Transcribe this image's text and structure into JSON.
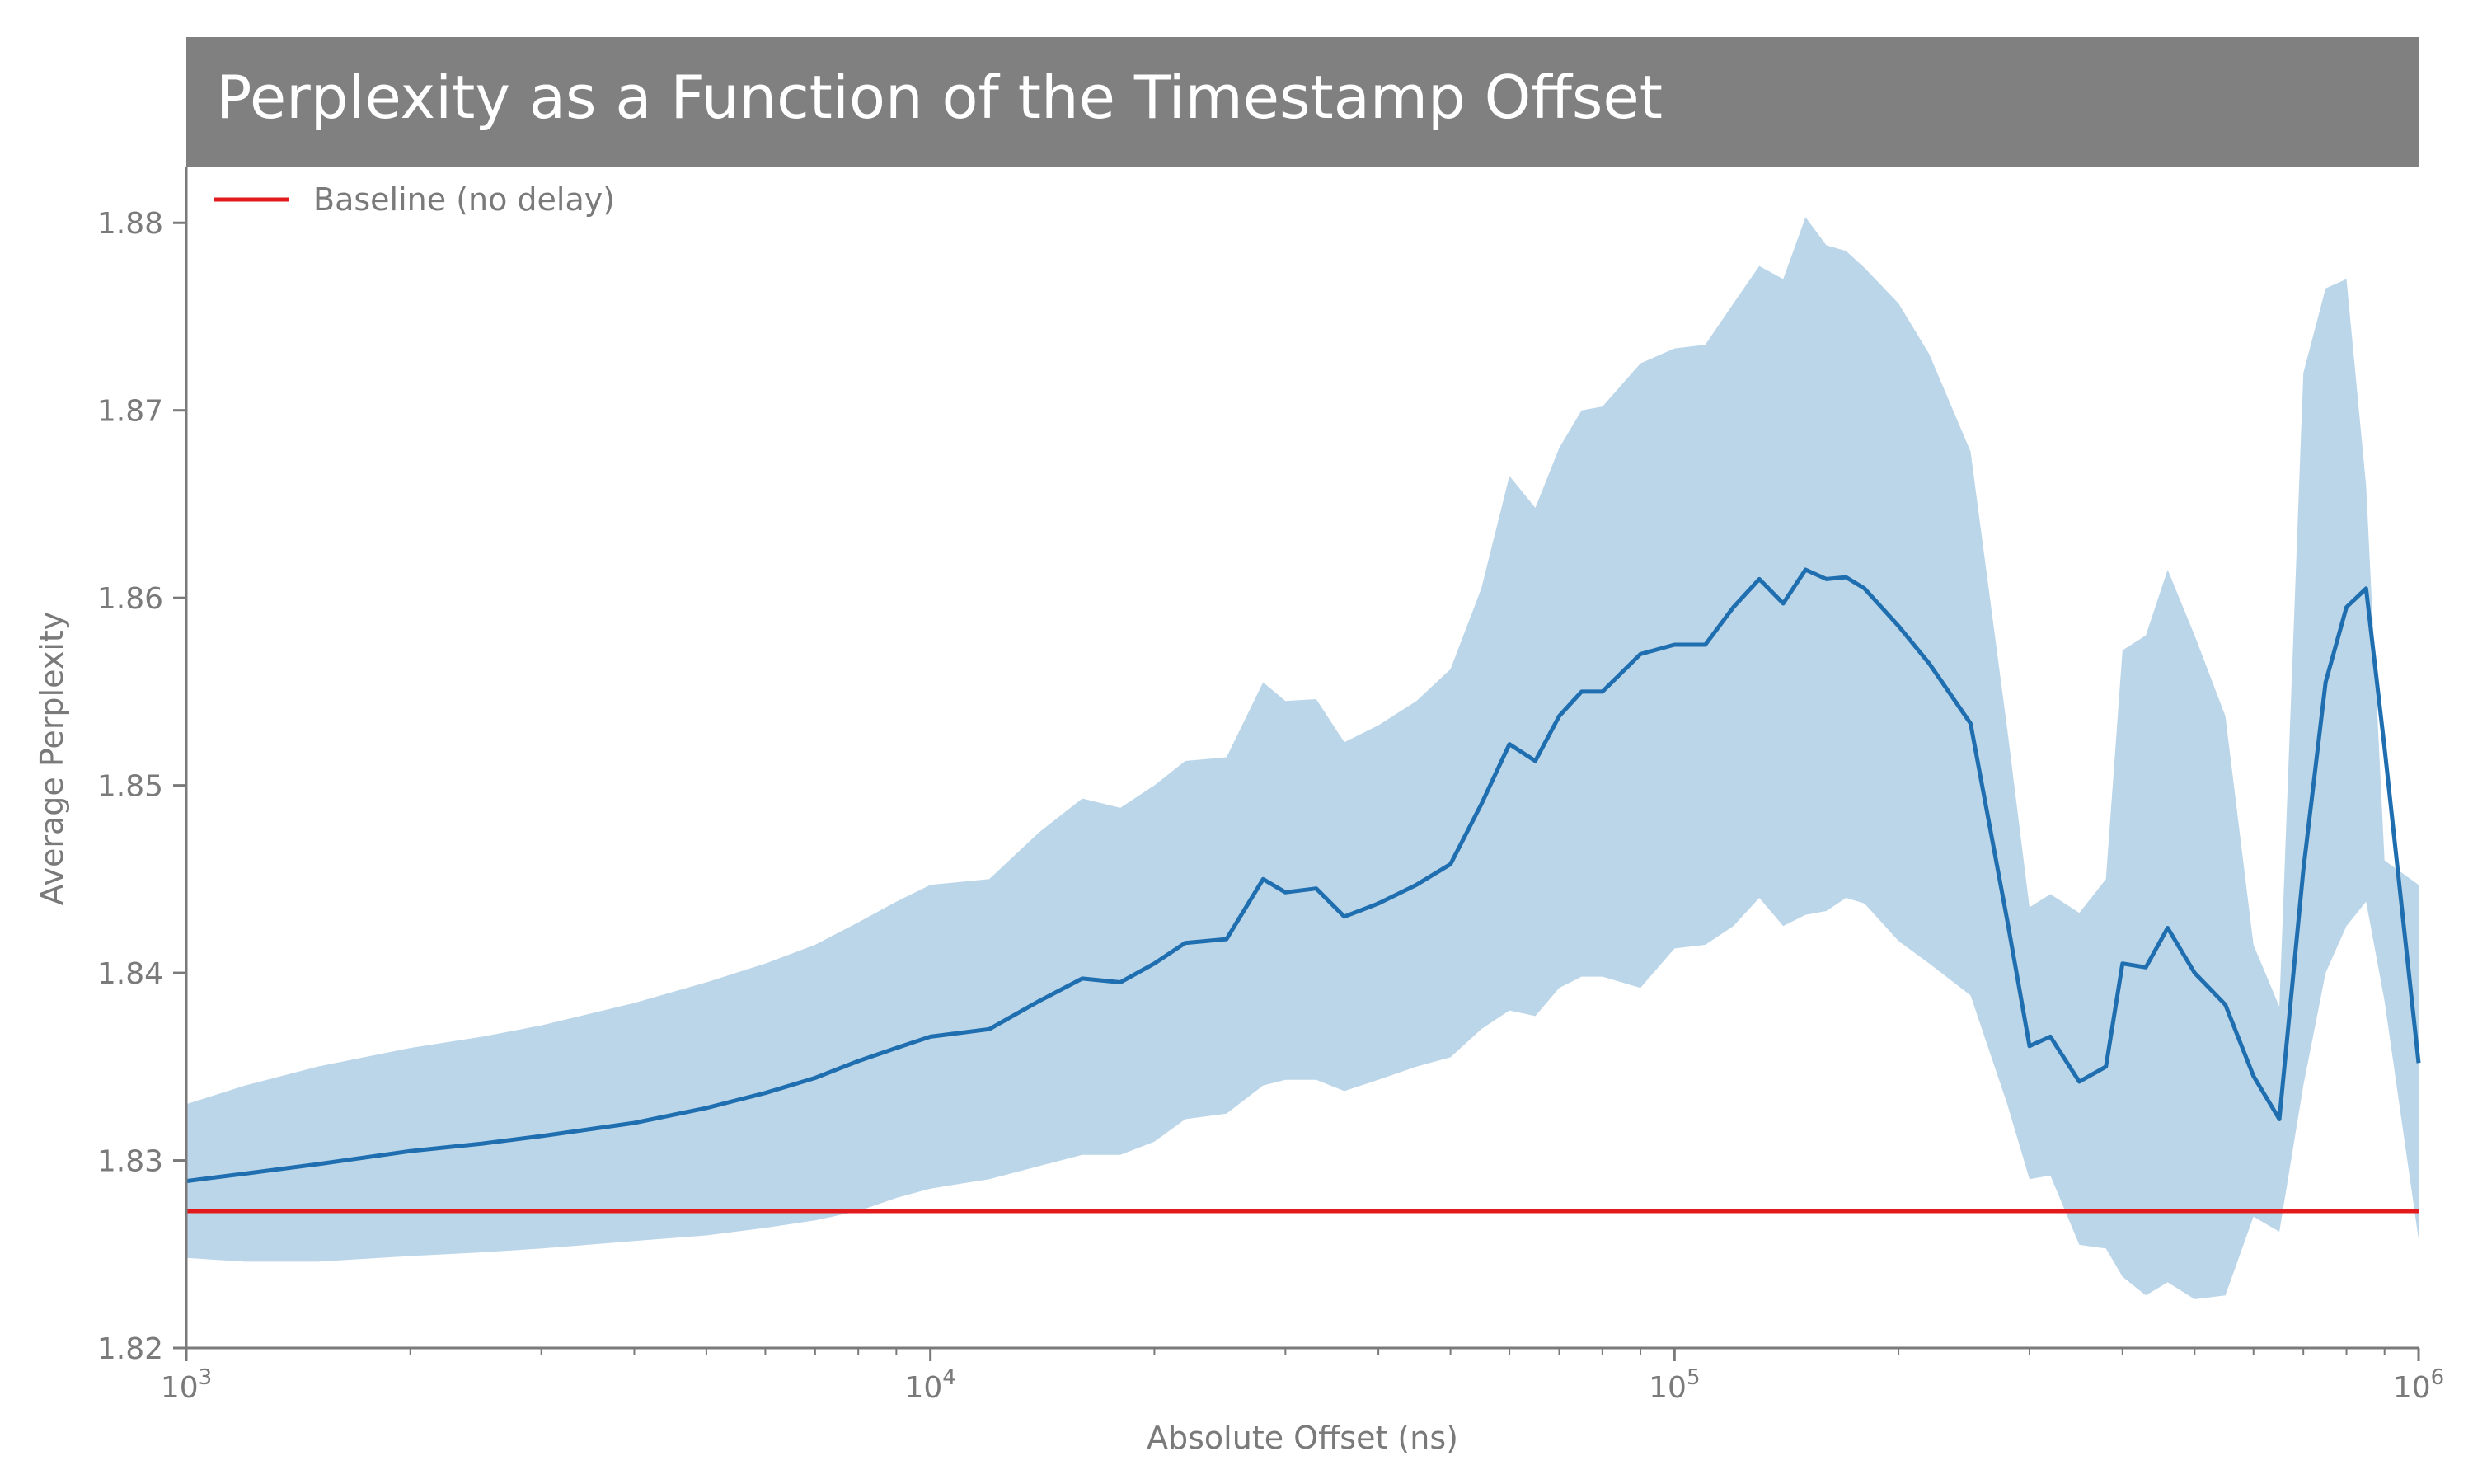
{
  "chart_data": {
    "type": "line",
    "title": "Perplexity as a Function of the Timestamp Offset",
    "xlabel": "Absolute Offset (ns)",
    "ylabel": "Average Perplexity",
    "xscale": "log",
    "xlim": [
      1000,
      1000000
    ],
    "ylim": [
      1.82,
      1.883
    ],
    "grid": false,
    "legend_position": "top-left",
    "x_ticks": [
      {
        "base": "10",
        "exp": "3",
        "value": 1000
      },
      {
        "base": "10",
        "exp": "4",
        "value": 10000
      },
      {
        "base": "10",
        "exp": "5",
        "value": 100000
      },
      {
        "base": "10",
        "exp": "6",
        "value": 1000000
      }
    ],
    "y_ticks": [
      "1.82",
      "1.83",
      "1.84",
      "1.85",
      "1.86",
      "1.87",
      "1.88"
    ],
    "colors": {
      "title_bar": "#808080",
      "mean_line": "#1f6fb0",
      "band": "#bcd6e9",
      "baseline": "#e31a1c",
      "axis": "#7a7a7a"
    },
    "baseline": {
      "name": "Baseline (no delay)",
      "value": 1.8273
    },
    "series": [
      {
        "x": [
          1000,
          1200,
          1500,
          2000,
          2500,
          3000,
          4000,
          5000,
          6000,
          7000,
          8000,
          9000,
          10000,
          12000,
          14000,
          16000,
          18000,
          20000,
          22000,
          25000,
          28000,
          30000,
          33000,
          36000,
          40000,
          45000,
          50000,
          55000,
          60000,
          65000,
          70000,
          75000,
          80000,
          90000,
          100000,
          110000,
          120000,
          130000,
          140000,
          150000,
          160000,
          170000,
          180000,
          200000,
          220000,
          250000,
          280000,
          300000,
          320000,
          350000,
          380000,
          400000,
          430000,
          460000,
          500000,
          550000,
          600000,
          650000,
          700000,
          750000,
          800000,
          850000,
          900000,
          1000000
        ],
        "mean": [
          1.8289,
          1.8293,
          1.8298,
          1.8305,
          1.8309,
          1.8313,
          1.832,
          1.8328,
          1.8336,
          1.8344,
          1.8353,
          1.836,
          1.8366,
          1.837,
          1.8385,
          1.8397,
          1.8395,
          1.8405,
          1.8416,
          1.8418,
          1.845,
          1.8443,
          1.8445,
          1.843,
          1.8437,
          1.8447,
          1.8458,
          1.849,
          1.8522,
          1.8513,
          1.8537,
          1.855,
          1.855,
          1.857,
          1.8575,
          1.8575,
          1.8595,
          1.861,
          1.8597,
          1.8615,
          1.861,
          1.8611,
          1.8605,
          1.8585,
          1.8565,
          1.8533,
          1.8428,
          1.8361,
          1.8366,
          1.8342,
          1.835,
          1.8405,
          1.8403,
          1.8424,
          1.84,
          1.8383,
          1.8345,
          1.8322,
          1.8455,
          1.8555,
          1.8595,
          1.8605,
          1.852,
          1.8352
        ]
      },
      {
        "x": [
          1000,
          1200,
          1500,
          2000,
          2500,
          3000,
          4000,
          5000,
          6000,
          7000,
          8000,
          9000,
          10000,
          12000,
          14000,
          16000,
          18000,
          20000,
          22000,
          25000,
          28000,
          30000,
          33000,
          36000,
          40000,
          45000,
          50000,
          55000,
          60000,
          65000,
          70000,
          75000,
          80000,
          90000,
          100000,
          110000,
          120000,
          130000,
          140000,
          150000,
          160000,
          170000,
          180000,
          200000,
          220000,
          250000,
          280000,
          300000,
          320000,
          350000,
          380000,
          400000,
          430000,
          460000,
          500000,
          550000,
          600000,
          650000,
          700000,
          750000,
          800000,
          850000,
          900000,
          1000000
        ],
        "upper": [
          1.833,
          1.834,
          1.835,
          1.836,
          1.8366,
          1.8372,
          1.8384,
          1.8395,
          1.8405,
          1.8415,
          1.8427,
          1.8438,
          1.8447,
          1.845,
          1.8475,
          1.8493,
          1.8488,
          1.85,
          1.8513,
          1.8515,
          1.8555,
          1.8545,
          1.8546,
          1.8523,
          1.8532,
          1.8545,
          1.8562,
          1.8605,
          1.8665,
          1.8648,
          1.868,
          1.87,
          1.8702,
          1.8725,
          1.8733,
          1.8735,
          1.8757,
          1.8777,
          1.877,
          1.8803,
          1.8788,
          1.8785,
          1.8776,
          1.8757,
          1.873,
          1.8678,
          1.853,
          1.8435,
          1.8442,
          1.8432,
          1.845,
          1.8572,
          1.858,
          1.8615,
          1.858,
          1.8537,
          1.8415,
          1.8382,
          1.872,
          1.8765,
          1.877,
          1.866,
          1.846,
          1.8447
        ],
        "lower": [
          1.8248,
          1.8246,
          1.8246,
          1.8249,
          1.8251,
          1.8253,
          1.8257,
          1.826,
          1.8264,
          1.8268,
          1.8273,
          1.828,
          1.8285,
          1.829,
          1.8297,
          1.8303,
          1.8303,
          1.831,
          1.8322,
          1.8325,
          1.834,
          1.8343,
          1.8343,
          1.8337,
          1.8343,
          1.835,
          1.8355,
          1.837,
          1.838,
          1.8377,
          1.8392,
          1.8398,
          1.8398,
          1.8392,
          1.8413,
          1.8415,
          1.8425,
          1.844,
          1.8425,
          1.8431,
          1.8433,
          1.844,
          1.8437,
          1.8417,
          1.8405,
          1.8388,
          1.833,
          1.829,
          1.8292,
          1.8255,
          1.8253,
          1.8238,
          1.8228,
          1.8235,
          1.8226,
          1.8228,
          1.827,
          1.8262,
          1.834,
          1.84,
          1.8425,
          1.8438,
          1.8385,
          1.8258
        ]
      }
    ]
  }
}
